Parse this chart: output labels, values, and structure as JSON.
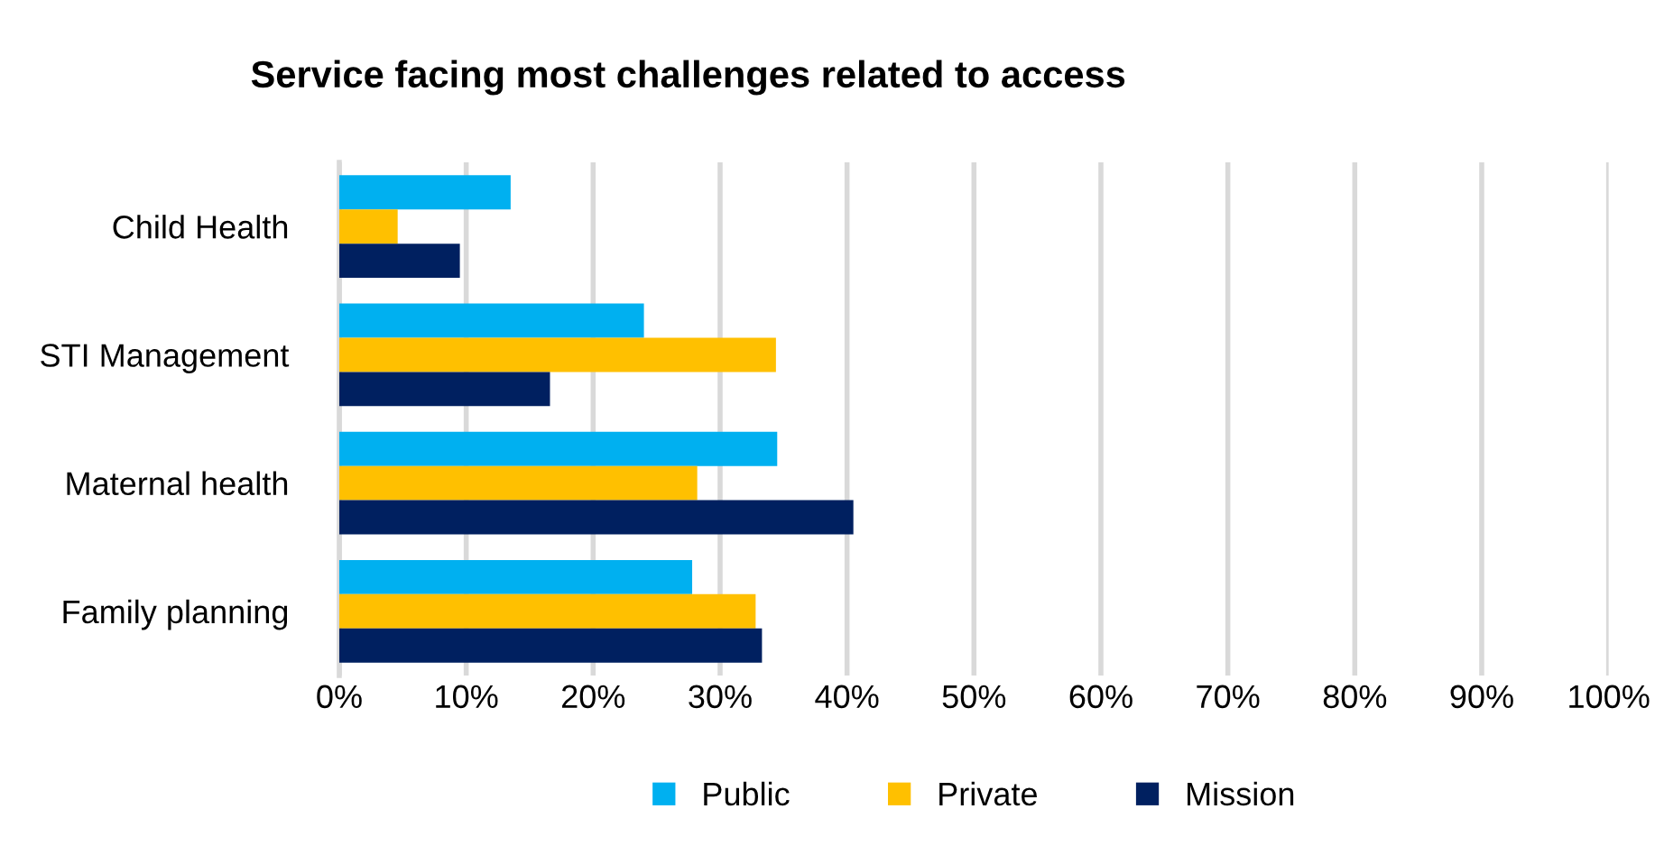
{
  "chart_data": {
    "type": "bar",
    "orientation": "horizontal",
    "title": "Service facing most challenges related to access",
    "categories": [
      "Child Health",
      "STI Management",
      "Maternal health",
      "Family planning"
    ],
    "series": [
      {
        "name": "Public",
        "color": "#00b0f0",
        "values": [
          13.5,
          24.0,
          34.5,
          27.8
        ]
      },
      {
        "name": "Private",
        "color": "#ffc000",
        "values": [
          4.6,
          34.4,
          28.2,
          32.8
        ]
      },
      {
        "name": "Mission",
        "color": "#002060",
        "values": [
          9.5,
          16.6,
          40.5,
          33.3
        ]
      }
    ],
    "xlim": [
      0,
      100
    ],
    "xticks": [
      {
        "value": 0,
        "label": "0%"
      },
      {
        "value": 10,
        "label": "10%"
      },
      {
        "value": 20,
        "label": "20%"
      },
      {
        "value": 30,
        "label": "30%"
      },
      {
        "value": 40,
        "label": "40%"
      },
      {
        "value": 50,
        "label": "50%"
      },
      {
        "value": 60,
        "label": "60%"
      },
      {
        "value": 70,
        "label": "70%"
      },
      {
        "value": 80,
        "label": "80%"
      },
      {
        "value": 90,
        "label": "90%"
      },
      {
        "value": 100,
        "label": "100%"
      }
    ],
    "grid": "x",
    "legend": "bottom"
  }
}
